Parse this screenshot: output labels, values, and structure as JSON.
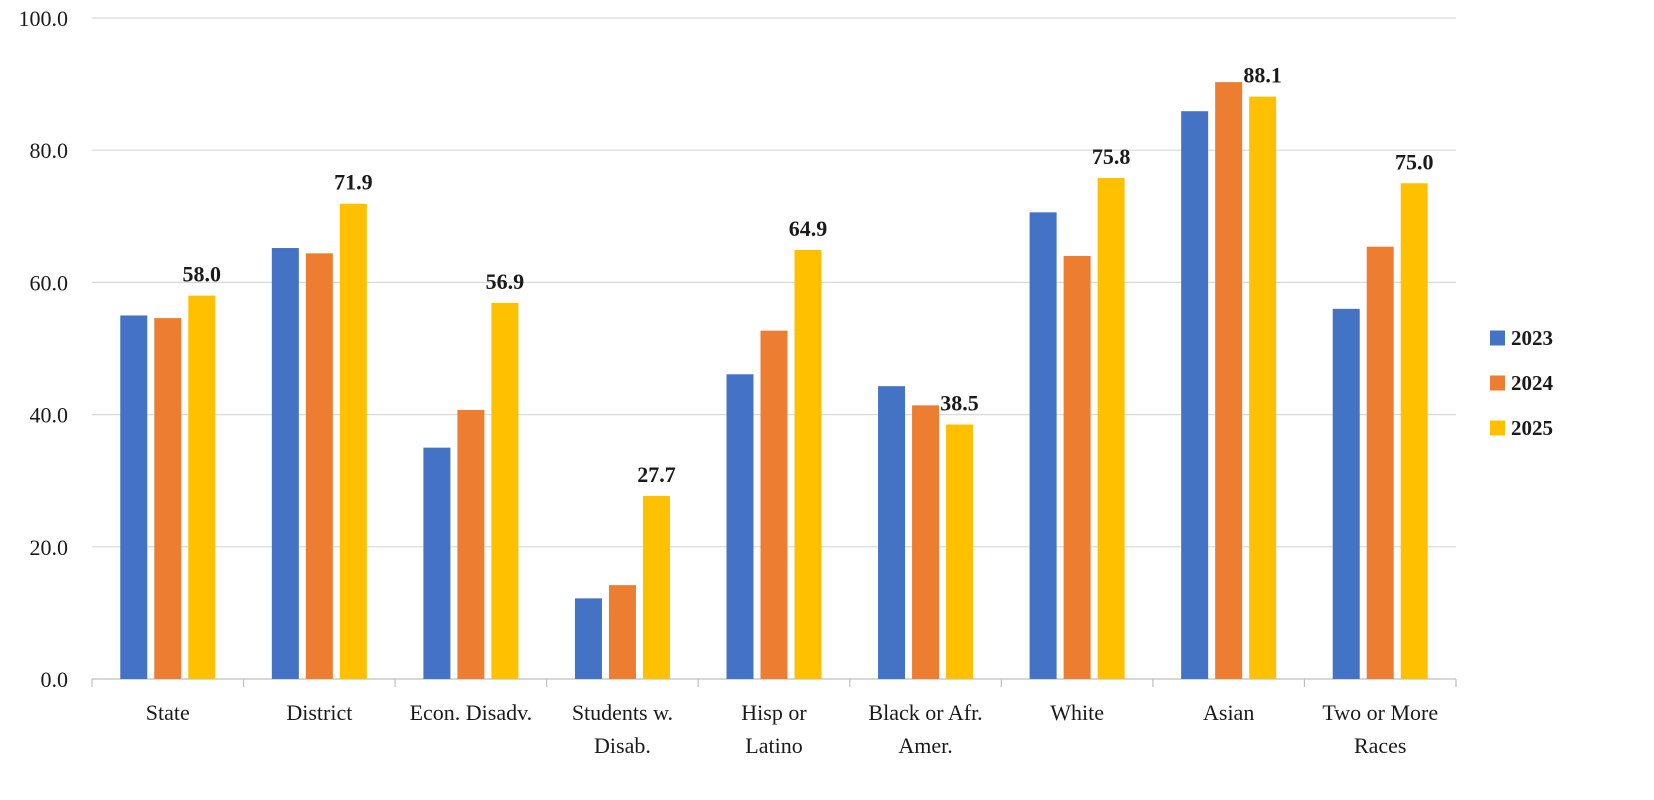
{
  "chart_data": {
    "type": "bar",
    "categories": [
      [
        "State"
      ],
      [
        "District"
      ],
      [
        "Econ. Disadv."
      ],
      [
        "Students w.",
        "Disab."
      ],
      [
        "Hisp or",
        "Latino"
      ],
      [
        "Black or Afr.",
        "Amer."
      ],
      [
        "White"
      ],
      [
        "Asian"
      ],
      [
        "Two or More",
        "Races"
      ]
    ],
    "series": [
      {
        "name": "2023",
        "color": "#4472C4",
        "values": [
          55.0,
          65.2,
          35.0,
          12.2,
          46.1,
          44.3,
          70.6,
          85.9,
          56.0
        ]
      },
      {
        "name": "2024",
        "color": "#ED7D31",
        "values": [
          54.6,
          64.4,
          40.7,
          14.2,
          52.7,
          41.4,
          64.0,
          90.3,
          65.4
        ]
      },
      {
        "name": "2025",
        "color": "#FFC000",
        "values": [
          58.0,
          71.9,
          56.9,
          27.7,
          64.9,
          38.5,
          75.8,
          88.1,
          75.0
        ]
      }
    ],
    "data_labels": [
      "58.0",
      "71.9",
      "56.9",
      "27.7",
      "64.9",
      "38.5",
      "75.8",
      "88.1",
      "75.0"
    ],
    "data_label_series": "2025",
    "yticks": [
      "0.0",
      "20.0",
      "40.0",
      "60.0",
      "80.0",
      "100.0"
    ],
    "ylim": [
      0,
      100
    ],
    "grid": true,
    "legend_position": "right",
    "title": "",
    "xlabel": "",
    "ylabel": ""
  }
}
